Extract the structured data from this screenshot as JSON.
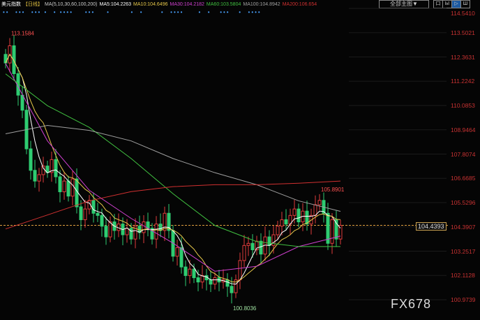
{
  "header": {
    "title": "美元指数",
    "period": "【日线】",
    "ma_params": "MA(5,10,30,60,100,200)",
    "ma5": "MA5:104.2263",
    "ma10": "MA10:104.6496",
    "ma30": "MA30:104.2182",
    "ma60": "MA60:103.5804",
    "ma100": "MA100:104.8942",
    "ma200": "MA200:106.654"
  },
  "toolbar": {
    "select_label": "全部主图▼",
    "buttons": [
      "口",
      "Ы",
      "▷",
      "Ш"
    ]
  },
  "watermark": "FX678",
  "current_price_label": "104.4393",
  "colors": {
    "up": "#e03c3c",
    "down": "#2ecc71",
    "ma5": "#ffffff",
    "ma10": "#e6c84a",
    "ma30": "#d040d0",
    "ma60": "#40c040",
    "ma100": "#a0a0a0",
    "ma200": "#d03030",
    "price_line": "#e0a040"
  },
  "chart_data": {
    "type": "candlestick",
    "y_ticks": [
      "114.5410",
      "113.5021",
      "112.3631",
      "111.2242",
      "110.0853",
      "108.9464",
      "107.8074",
      "106.6685",
      "105.5296",
      "104.3907",
      "103.2517",
      "102.1128",
      "100.9739"
    ],
    "ylim": [
      100.9739,
      114.541
    ],
    "closes": [
      112.0,
      112.8,
      111.5,
      110.5,
      109.8,
      108.0,
      107.0,
      106.5,
      106.8,
      107.2,
      106.9,
      107.5,
      106.7,
      106.0,
      106.5,
      105.8,
      106.6,
      105.3,
      104.7,
      105.2,
      105.6,
      105.0,
      104.9,
      104.4,
      103.9,
      104.6,
      104.2,
      104.5,
      104.0,
      104.3,
      103.8,
      104.4,
      104.1,
      104.6,
      104.3,
      103.8,
      104.5,
      104.2,
      105.0,
      104.2,
      103.0,
      103.4,
      102.5,
      102.1,
      102.4,
      102.0,
      101.8,
      102.1,
      101.9,
      101.7,
      102.0,
      101.8,
      101.9,
      101.6,
      101.3,
      101.9,
      102.8,
      103.5,
      103.6,
      103.3,
      103.7,
      103.1,
      103.9,
      103.5,
      104.0,
      104.4,
      104.7,
      104.5,
      104.9,
      105.2,
      104.6,
      105.1,
      104.5,
      104.9,
      105.4,
      105.6,
      105.0,
      103.6,
      104.7,
      103.8,
      104.4393
    ],
    "first_open": 112.4,
    "ma_sample_step": 10,
    "ma30": [
      111.98,
      108.37,
      106.07,
      104.76,
      103.61,
      102.3,
      102.53,
      103.45,
      103.94
    ],
    "ma60": [
      111.49,
      110.01,
      109.0,
      107.55,
      105.91,
      104.43,
      103.68,
      103.45,
      103.45
    ],
    "ma100": [
      108.7,
      109.09,
      108.86,
      108.37,
      107.55,
      106.89,
      106.33,
      105.58,
      105.09
    ],
    "ma200": [
      104.27,
      104.92,
      105.58,
      106.01,
      106.24,
      106.33,
      106.33,
      106.4,
      106.5
    ],
    "annotations": {
      "high": {
        "index": 1,
        "label": "113.1584",
        "value": 113.1584
      },
      "low": {
        "index": 54,
        "label": "100.8036",
        "value": 100.8036
      },
      "recent_high": {
        "index": 75,
        "label": "105.8901",
        "value": 105.8901
      }
    },
    "current_price": 104.4393
  }
}
